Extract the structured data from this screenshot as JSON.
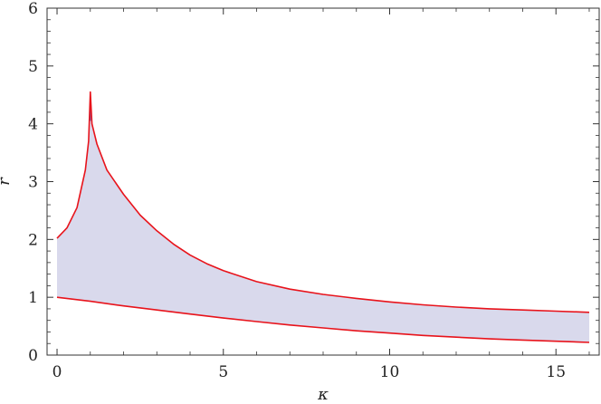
{
  "chart_data": {
    "type": "area",
    "xlabel": "κ",
    "ylabel": "r",
    "xlim": [
      -0.3,
      16.3
    ],
    "ylim": [
      0,
      6
    ],
    "x_ticks": [
      0,
      5,
      10,
      15
    ],
    "y_ticks": [
      0,
      1,
      2,
      3,
      4,
      5,
      6
    ],
    "grid": false,
    "colors": {
      "curve": "#e8131b",
      "fill": "#d9d9ec",
      "cusp": "#5a5ab0"
    },
    "series": [
      {
        "role": "upper",
        "points": [
          [
            0,
            2.02
          ],
          [
            0.3,
            2.2
          ],
          [
            0.6,
            2.55
          ],
          [
            0.85,
            3.2
          ],
          [
            0.95,
            3.7
          ],
          [
            1.0,
            4.55
          ],
          [
            1.05,
            4.0
          ],
          [
            1.2,
            3.65
          ],
          [
            1.5,
            3.2
          ],
          [
            2,
            2.78
          ],
          [
            2.5,
            2.42
          ],
          [
            3,
            2.15
          ],
          [
            3.5,
            1.92
          ],
          [
            4,
            1.73
          ],
          [
            4.5,
            1.58
          ],
          [
            5,
            1.46
          ],
          [
            6,
            1.27
          ],
          [
            7,
            1.14
          ],
          [
            8,
            1.05
          ],
          [
            9,
            0.98
          ],
          [
            10,
            0.92
          ],
          [
            11,
            0.87
          ],
          [
            12,
            0.83
          ],
          [
            13,
            0.8
          ],
          [
            14,
            0.78
          ],
          [
            15,
            0.76
          ],
          [
            16,
            0.74
          ]
        ]
      },
      {
        "role": "lower",
        "points": [
          [
            0,
            1.0
          ],
          [
            1,
            0.93
          ],
          [
            2,
            0.85
          ],
          [
            3,
            0.78
          ],
          [
            4,
            0.71
          ],
          [
            5,
            0.64
          ],
          [
            6,
            0.58
          ],
          [
            7,
            0.52
          ],
          [
            8,
            0.47
          ],
          [
            9,
            0.42
          ],
          [
            10,
            0.38
          ],
          [
            11,
            0.34
          ],
          [
            12,
            0.31
          ],
          [
            13,
            0.28
          ],
          [
            14,
            0.26
          ],
          [
            15,
            0.24
          ],
          [
            16,
            0.22
          ]
        ]
      }
    ]
  }
}
